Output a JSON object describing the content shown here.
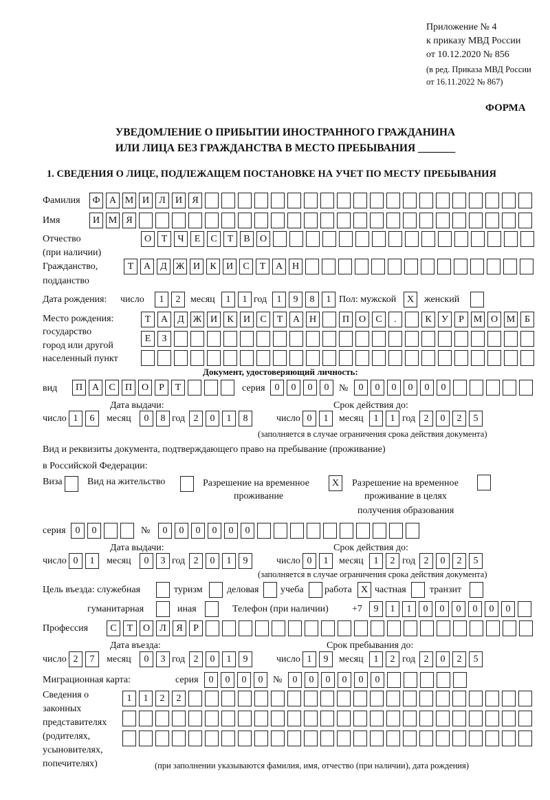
{
  "header": {
    "appendix": "Приложение № 4",
    "order": "к приказу МВД России",
    "order_date": "от 10.12.2020 № 856",
    "edition1": "(в ред. Приказа МВД России",
    "edition2": "от 16.11.2022 № 867)",
    "form": "ФОРМА",
    "title1": "УВЕДОМЛЕНИЕ О ПРИБЫТИИ ИНОСТРАННОГО ГРАЖДАНИНА",
    "title2": "ИЛИ ЛИЦА БЕЗ ГРАЖДАНСТВА В МЕСТО ПРЕБЫВАНИЯ _______",
    "section1": "1. СВЕДЕНИЯ О ЛИЦЕ, ПОДЛЕЖАЩЕМ ПОСТАНОВКЕ НА УЧЕТ ПО МЕСТУ ПРЕБЫВАНИЯ"
  },
  "labels": {
    "surname": "Фамилия",
    "name": "Имя",
    "patronymic": "Отчество",
    "patronymic2": "(при наличии)",
    "citizenship": "Гражданство,",
    "citizenship2": "подданство",
    "dob": "Дата рождения:",
    "day": "число",
    "month": "месяц",
    "year": "год",
    "sex": "Пол: мужской",
    "female": "женский",
    "birthplace1": "Место рождения:",
    "birthplace2": "государство",
    "birthplace3": "город или другой",
    "birthplace4": "населенный пункт",
    "id_doc": "Документ, удостоверяющий личность:",
    "kind": "вид",
    "series": "серия",
    "number": "№",
    "issue_date": "Дата выдачи:",
    "valid_until": "Срок действия до:",
    "valid_note": "(заполняется в случае ограничения срока действия документа)",
    "right_doc1": "Вид и реквизиты документа, подтверждающего право на пребывание (проживание)",
    "right_doc2": "в Российской Федерации:",
    "visa": "Виза",
    "residence": "Вид на жительство",
    "temp1": "Разрешение на временное",
    "temp2": "проживание",
    "edu1": "Разрешение на временное",
    "edu2": "проживание в целях",
    "edu3": "получения образования",
    "purpose": "Цель въезда: служебная",
    "tourism": "туризм",
    "business": "деловая",
    "study": "учеба",
    "work": "работа",
    "private": "частная",
    "transit": "транзит",
    "humanitarian": "гуманитарная",
    "other": "иная",
    "phone": "Телефон (при наличии)",
    "phone_prefix": "+7",
    "profession": "Профессия",
    "entry_date": "Дата въезда:",
    "stay_until": "Срок пребывания до:",
    "migration_card": "Миграционная карта:",
    "reps1": "Сведения о",
    "reps2": "законных",
    "reps3": "представителях",
    "reps4": "(родителях,",
    "reps5": "усыновителях,",
    "reps6": "попечителях)",
    "reps_note": "(при заполнении указываются фамилия, имя, отчество (при наличии), дата рождения)"
  },
  "fields": {
    "surname": [
      "Ф",
      "А",
      "М",
      "И",
      "Л",
      "И",
      "Я",
      "",
      "",
      "",
      "",
      "",
      "",
      "",
      "",
      "",
      "",
      "",
      "",
      "",
      "",
      "",
      "",
      "",
      "",
      "",
      ""
    ],
    "name": [
      "И",
      "М",
      "Я",
      "",
      "",
      "",
      "",
      "",
      "",
      "",
      "",
      "",
      "",
      "",
      "",
      "",
      "",
      "",
      "",
      "",
      "",
      "",
      "",
      "",
      "",
      "",
      ""
    ],
    "patronymic": [
      "О",
      "Т",
      "Ч",
      "Е",
      "С",
      "Т",
      "В",
      "О",
      "",
      "",
      "",
      "",
      "",
      "",
      "",
      "",
      "",
      "",
      "",
      "",
      "",
      "",
      "",
      ""
    ],
    "citizenship": [
      "Т",
      "А",
      "Д",
      "Ж",
      "И",
      "К",
      "И",
      "С",
      "Т",
      "А",
      "Н",
      "",
      "",
      "",
      "",
      "",
      "",
      "",
      "",
      "",
      "",
      "",
      "",
      "",
      ""
    ],
    "dob_day": [
      "1",
      "2"
    ],
    "dob_month": [
      "1",
      "1"
    ],
    "dob_year": [
      "1",
      "9",
      "8",
      "1"
    ],
    "sex_male": [
      "X"
    ],
    "sex_female": [
      ""
    ],
    "birthplace1": [
      "Т",
      "А",
      "Д",
      "Ж",
      "И",
      "К",
      "И",
      "С",
      "Т",
      "А",
      "Н",
      "",
      "П",
      "О",
      "С",
      ".",
      "",
      "К",
      "У",
      "Р",
      "М",
      "О",
      "М",
      "Б"
    ],
    "birthplace2": [
      "Е",
      "З",
      "",
      "",
      "",
      "",
      "",
      "",
      "",
      "",
      "",
      "",
      "",
      "",
      "",
      "",
      "",
      "",
      "",
      "",
      "",
      "",
      "",
      ""
    ],
    "birthplace3": [
      "",
      "",
      "",
      "",
      "",
      "",
      "",
      "",
      "",
      "",
      "",
      "",
      "",
      "",
      "",
      "",
      "",
      "",
      "",
      "",
      "",
      "",
      "",
      ""
    ],
    "id_kind": [
      "П",
      "А",
      "С",
      "П",
      "О",
      "Р",
      "Т",
      "",
      "",
      ""
    ],
    "id_series": [
      "0",
      "0",
      "0",
      "0"
    ],
    "id_number": [
      "0",
      "0",
      "0",
      "0",
      "0",
      "0",
      "",
      "",
      "",
      "",
      ""
    ],
    "id_issue_day": [
      "1",
      "6"
    ],
    "id_issue_month": [
      "0",
      "8"
    ],
    "id_issue_year": [
      "2",
      "0",
      "1",
      "8"
    ],
    "id_valid_day": [
      "0",
      "1"
    ],
    "id_valid_month": [
      "1",
      "1"
    ],
    "id_valid_year": [
      "2",
      "0",
      "2",
      "5"
    ],
    "visa": [
      ""
    ],
    "residence": [
      ""
    ],
    "temp_residence": [
      "X"
    ],
    "edu_residence": [
      ""
    ],
    "rd_series": [
      "0",
      "0",
      "",
      ""
    ],
    "rd_number": [
      "0",
      "0",
      "0",
      "0",
      "0",
      "0",
      "",
      "",
      "",
      "",
      "",
      "",
      "",
      "",
      "",
      ""
    ],
    "rd_issue_day": [
      "0",
      "1"
    ],
    "rd_issue_month": [
      "0",
      "3"
    ],
    "rd_issue_year": [
      "2",
      "0",
      "1",
      "9"
    ],
    "rd_valid_day": [
      "0",
      "1"
    ],
    "rd_valid_month": [
      "1",
      "2"
    ],
    "rd_valid_year": [
      "2",
      "0",
      "2",
      "5"
    ],
    "p_official": [
      ""
    ],
    "p_tourism": [
      ""
    ],
    "p_business": [
      ""
    ],
    "p_study": [
      ""
    ],
    "p_work": [
      "X"
    ],
    "p_private": [
      ""
    ],
    "p_transit": [
      ""
    ],
    "p_humanitarian": [
      ""
    ],
    "p_other": [
      ""
    ],
    "phone": [
      "9",
      "1",
      "1",
      "0",
      "0",
      "0",
      "0",
      "0",
      "0",
      ""
    ],
    "profession": [
      "С",
      "Т",
      "О",
      "Л",
      "Я",
      "Р",
      "",
      "",
      "",
      "",
      "",
      "",
      "",
      "",
      "",
      "",
      "",
      "",
      "",
      "",
      "",
      "",
      "",
      "",
      "",
      ""
    ],
    "entry_day": [
      "2",
      "7"
    ],
    "entry_month": [
      "0",
      "3"
    ],
    "entry_year": [
      "2",
      "0",
      "1",
      "9"
    ],
    "stay_day": [
      "1",
      "9"
    ],
    "stay_month": [
      "1",
      "2"
    ],
    "stay_year": [
      "2",
      "0",
      "2",
      "5"
    ],
    "mc_series": [
      "0",
      "0",
      "0",
      "0"
    ],
    "mc_number": [
      "0",
      "0",
      "0",
      "0",
      "0",
      "0",
      "",
      "",
      "",
      "",
      ""
    ],
    "reps1": [
      "1",
      "1",
      "2",
      "2",
      "",
      "",
      "",
      "",
      "",
      "",
      "",
      "",
      "",
      "",
      "",
      "",
      "",
      "",
      "",
      "",
      "",
      "",
      "",
      "",
      ""
    ],
    "reps2": [
      "",
      "",
      "",
      "",
      "",
      "",
      "",
      "",
      "",
      "",
      "",
      "",
      "",
      "",
      "",
      "",
      "",
      "",
      "",
      "",
      "",
      "",
      "",
      "",
      ""
    ],
    "reps3": [
      "",
      "",
      "",
      "",
      "",
      "",
      "",
      "",
      "",
      "",
      "",
      "",
      "",
      "",
      "",
      "",
      "",
      "",
      "",
      "",
      "",
      "",
      "",
      "",
      ""
    ]
  }
}
